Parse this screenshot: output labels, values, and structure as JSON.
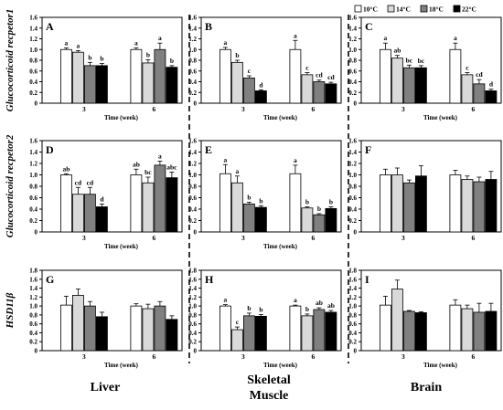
{
  "figure": {
    "legend": [
      {
        "label": "10°C",
        "color": "#ffffff"
      },
      {
        "label": "14°C",
        "color": "#d9d9d9"
      },
      {
        "label": "18°C",
        "color": "#808080"
      },
      {
        "label": "22°C",
        "color": "#000000"
      }
    ],
    "row_labels": [
      "Glucocorticoid recpetor1",
      "Glucocorticoid recpetor2",
      "HSD11β"
    ],
    "column_labels": [
      "Liver",
      "Skeletal\nMuscle",
      "Brain"
    ]
  },
  "chart_data": [
    {
      "panel": "A",
      "type": "bar",
      "categories": [
        "3",
        "6"
      ],
      "xlabel": "Time (week)",
      "ylim": [
        0,
        1.6
      ],
      "yticks": [
        "0",
        "0.2",
        "0.4",
        "0.6",
        "0.8",
        "1.0",
        "1.2",
        "1.4",
        "1.6"
      ],
      "series": [
        {
          "name": "10°C",
          "values": [
            1.0,
            1.0
          ],
          "errors": [
            0.03,
            0.03
          ],
          "letters": [
            "a",
            "a"
          ]
        },
        {
          "name": "14°C",
          "values": [
            0.95,
            0.75
          ],
          "errors": [
            0.03,
            0.06
          ],
          "letters": [
            "a",
            "b"
          ]
        },
        {
          "name": "18°C",
          "values": [
            0.7,
            1.0
          ],
          "errors": [
            0.06,
            0.12
          ],
          "letters": [
            "b",
            "a"
          ]
        },
        {
          "name": "22°C",
          "values": [
            0.7,
            0.67
          ],
          "errors": [
            0.04,
            0.03
          ],
          "letters": [
            "b",
            "b"
          ]
        }
      ]
    },
    {
      "panel": "B",
      "type": "bar",
      "categories": [
        "3",
        "6"
      ],
      "xlabel": "Time (week)",
      "ylim": [
        0,
        1.6
      ],
      "yticks": [
        "0",
        "0.2",
        "0.4",
        "0.6",
        "0.8",
        "1.0",
        "1.2",
        "1.4",
        "1.6"
      ],
      "series": [
        {
          "name": "10°C",
          "values": [
            1.0,
            1.0
          ],
          "errors": [
            0.04,
            0.17
          ],
          "letters": [
            "a",
            "a"
          ]
        },
        {
          "name": "14°C",
          "values": [
            0.76,
            0.53
          ],
          "errors": [
            0.04,
            0.04
          ],
          "letters": [
            "b",
            "c"
          ]
        },
        {
          "name": "18°C",
          "values": [
            0.47,
            0.4
          ],
          "errors": [
            0.04,
            0.03
          ],
          "letters": [
            "c",
            "cd"
          ]
        },
        {
          "name": "22°C",
          "values": [
            0.23,
            0.36
          ],
          "errors": [
            0.02,
            0.03
          ],
          "letters": [
            "d",
            "cd"
          ]
        }
      ]
    },
    {
      "panel": "C",
      "type": "bar",
      "categories": [
        "3",
        "6"
      ],
      "xlabel": "Time (week)",
      "ylim": [
        0,
        1.6
      ],
      "yticks": [
        "0",
        "0.2",
        "0.4",
        "0.6",
        "0.8",
        "1.0",
        "1.2",
        "1.4",
        "1.6"
      ],
      "series": [
        {
          "name": "10°C",
          "values": [
            1.0,
            1.0
          ],
          "errors": [
            0.12,
            0.12
          ],
          "letters": [
            "a",
            "a"
          ]
        },
        {
          "name": "14°C",
          "values": [
            0.84,
            0.53
          ],
          "errors": [
            0.05,
            0.04
          ],
          "letters": [
            "ab",
            "c"
          ]
        },
        {
          "name": "18°C",
          "values": [
            0.66,
            0.36
          ],
          "errors": [
            0.05,
            0.08
          ],
          "letters": [
            "bc",
            "cd"
          ]
        },
        {
          "name": "22°C",
          "values": [
            0.66,
            0.23
          ],
          "errors": [
            0.04,
            0.03
          ],
          "letters": [
            "bc",
            "d"
          ]
        }
      ]
    },
    {
      "panel": "D",
      "type": "bar",
      "categories": [
        "3",
        "6"
      ],
      "xlabel": "Time (week)",
      "ylim": [
        0,
        1.6
      ],
      "yticks": [
        "0",
        "0.2",
        "0.4",
        "0.6",
        "0.8",
        "1.0",
        "1.2",
        "1.4",
        "1.6"
      ],
      "series": [
        {
          "name": "10°C",
          "values": [
            1.0,
            1.0
          ],
          "errors": [
            0.02,
            0.1
          ],
          "letters": [
            "ab",
            "ab"
          ]
        },
        {
          "name": "14°C",
          "values": [
            0.66,
            0.86
          ],
          "errors": [
            0.12,
            0.1
          ],
          "letters": [
            "cd",
            "bc"
          ]
        },
        {
          "name": "18°C",
          "values": [
            0.66,
            1.17
          ],
          "errors": [
            0.12,
            0.07
          ],
          "letters": [
            "cd",
            "a"
          ]
        },
        {
          "name": "22°C",
          "values": [
            0.44,
            0.95
          ],
          "errors": [
            0.05,
            0.1
          ],
          "letters": [
            "d",
            "abc"
          ]
        }
      ]
    },
    {
      "panel": "E",
      "type": "bar",
      "categories": [
        "3",
        "6"
      ],
      "xlabel": "Time (week)",
      "ylim": [
        0,
        1.6
      ],
      "yticks": [
        "0",
        "0.2",
        "0.4",
        "0.6",
        "0.8",
        "1.0",
        "1.2",
        "1.4",
        "1.6"
      ],
      "series": [
        {
          "name": "10°C",
          "values": [
            1.02,
            1.02
          ],
          "errors": [
            0.16,
            0.15
          ],
          "letters": [
            "a",
            "a"
          ]
        },
        {
          "name": "14°C",
          "values": [
            0.86,
            0.42
          ],
          "errors": [
            0.12,
            0.02
          ],
          "letters": [
            "a",
            "b"
          ]
        },
        {
          "name": "18°C",
          "values": [
            0.49,
            0.3
          ],
          "errors": [
            0.03,
            0.02
          ],
          "letters": [
            "b",
            "b"
          ]
        },
        {
          "name": "22°C",
          "values": [
            0.43,
            0.41
          ],
          "errors": [
            0.03,
            0.03
          ],
          "letters": [
            "b",
            "b"
          ]
        }
      ]
    },
    {
      "panel": "F",
      "type": "bar",
      "categories": [
        "3",
        "6"
      ],
      "xlabel": "",
      "ylim": [
        0,
        1.6
      ],
      "yticks": [
        "0",
        "0.2",
        "0.4",
        "0.6",
        "0.8",
        "1.0",
        "1.2",
        "1.4",
        "1.6"
      ],
      "series": [
        {
          "name": "10°C",
          "values": [
            1.0,
            1.0
          ],
          "errors": [
            0.1,
            0.08
          ],
          "letters": [
            "",
            ""
          ]
        },
        {
          "name": "14°C",
          "values": [
            1.0,
            0.92
          ],
          "errors": [
            0.12,
            0.06
          ],
          "letters": [
            "",
            ""
          ]
        },
        {
          "name": "18°C",
          "values": [
            0.86,
            0.88
          ],
          "errors": [
            0.05,
            0.08
          ],
          "letters": [
            "",
            ""
          ]
        },
        {
          "name": "22°C",
          "values": [
            0.98,
            0.92
          ],
          "errors": [
            0.18,
            0.14
          ],
          "letters": [
            "",
            ""
          ]
        }
      ]
    },
    {
      "panel": "G",
      "type": "bar",
      "categories": [
        "3",
        "6"
      ],
      "xlabel": "Time (week)",
      "ylim": [
        0,
        1.8
      ],
      "yticks": [
        "0",
        "0.2",
        "0.4",
        "0.6",
        "0.8",
        "1.0",
        "1.2",
        "1.4",
        "1.6",
        "1.8"
      ],
      "series": [
        {
          "name": "10°C",
          "values": [
            1.02,
            1.0
          ],
          "errors": [
            0.2,
            0.05
          ],
          "letters": [
            "",
            ""
          ]
        },
        {
          "name": "14°C",
          "values": [
            1.24,
            0.94
          ],
          "errors": [
            0.14,
            0.1
          ],
          "letters": [
            "",
            ""
          ]
        },
        {
          "name": "18°C",
          "values": [
            1.0,
            1.0
          ],
          "errors": [
            0.1,
            0.1
          ],
          "letters": [
            "",
            ""
          ]
        },
        {
          "name": "22°C",
          "values": [
            0.76,
            0.7
          ],
          "errors": [
            0.1,
            0.08
          ],
          "letters": [
            "",
            ""
          ]
        }
      ]
    },
    {
      "panel": "H",
      "type": "bar",
      "categories": [
        "3",
        "6"
      ],
      "xlabel": "Time (week)",
      "ylim": [
        0,
        1.8
      ],
      "yticks": [
        "0",
        "0.2",
        "0.4",
        "0.6",
        "0.8",
        "1.0",
        "1.2",
        "1.4",
        "1.6",
        "1.8"
      ],
      "series": [
        {
          "name": "10°C",
          "values": [
            1.0,
            1.0
          ],
          "errors": [
            0.03,
            0.02
          ],
          "letters": [
            "a",
            "a"
          ]
        },
        {
          "name": "14°C",
          "values": [
            0.47,
            0.78
          ],
          "errors": [
            0.06,
            0.04
          ],
          "letters": [
            "c",
            "b"
          ]
        },
        {
          "name": "18°C",
          "values": [
            0.78,
            0.92
          ],
          "errors": [
            0.06,
            0.04
          ],
          "letters": [
            "b",
            "ab"
          ]
        },
        {
          "name": "22°C",
          "values": [
            0.77,
            0.86
          ],
          "errors": [
            0.04,
            0.04
          ],
          "letters": [
            "b",
            "ab"
          ]
        }
      ]
    },
    {
      "panel": "I",
      "type": "bar",
      "categories": [
        "3",
        "6"
      ],
      "xlabel": "Time (week)",
      "ylim": [
        0,
        1.8
      ],
      "yticks": [
        "0",
        "0.2",
        "0.4",
        "0.6",
        "0.8",
        "1.0",
        "1.2",
        "1.4",
        "1.6",
        "1.8"
      ],
      "series": [
        {
          "name": "10°C",
          "values": [
            1.02,
            1.02
          ],
          "errors": [
            0.2,
            0.12
          ],
          "letters": [
            "",
            ""
          ]
        },
        {
          "name": "14°C",
          "values": [
            1.38,
            0.94
          ],
          "errors": [
            0.2,
            0.08
          ],
          "letters": [
            "",
            ""
          ]
        },
        {
          "name": "18°C",
          "values": [
            0.88,
            0.86
          ],
          "errors": [
            0.02,
            0.2
          ],
          "letters": [
            "",
            ""
          ]
        },
        {
          "name": "22°C",
          "values": [
            0.85,
            0.88
          ],
          "errors": [
            0.02,
            0.18
          ],
          "letters": [
            "",
            ""
          ]
        }
      ]
    }
  ]
}
